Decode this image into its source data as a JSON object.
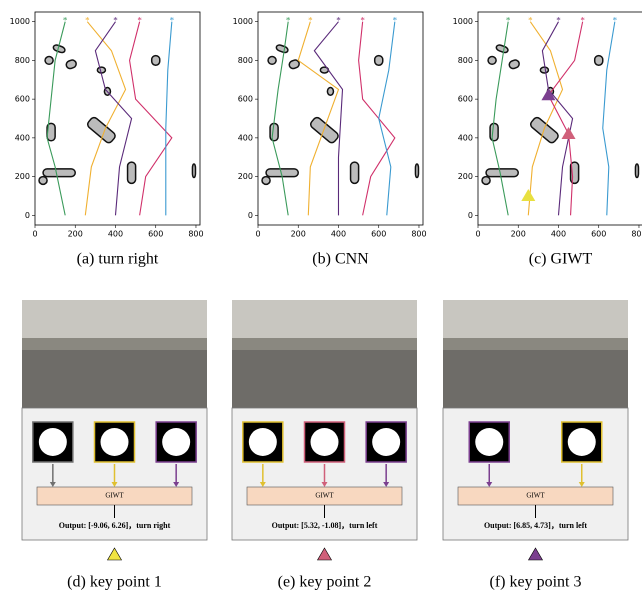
{
  "chart_data": [
    {
      "type": "line",
      "caption": "(a) turn right",
      "xlim": [
        0,
        820
      ],
      "ylim": [
        -50,
        1050
      ],
      "xticks": [
        0,
        200,
        400,
        600,
        800
      ],
      "yticks": [
        0,
        200,
        400,
        600,
        800,
        1000
      ],
      "series": [
        {
          "color": "#3a9a5a",
          "x": [
            150,
            100,
            80,
            60,
            100,
            150
          ],
          "values": [
            1000,
            800,
            600,
            400,
            250,
            0
          ]
        },
        {
          "color": "#f0b030",
          "x": [
            260,
            380,
            450,
            350,
            280,
            250
          ],
          "values": [
            1000,
            850,
            650,
            450,
            250,
            0
          ]
        },
        {
          "color": "#5a2a7a",
          "x": [
            400,
            300,
            350,
            480,
            420,
            400
          ],
          "values": [
            1000,
            850,
            650,
            500,
            250,
            0
          ]
        },
        {
          "color": "#d0306a",
          "x": [
            520,
            470,
            500,
            680,
            550,
            520
          ],
          "values": [
            1000,
            800,
            600,
            400,
            200,
            0
          ]
        },
        {
          "color": "#3a9ad0",
          "x": [
            680,
            660,
            650,
            650,
            650
          ],
          "values": [
            1000,
            750,
            450,
            250,
            0
          ]
        }
      ]
    },
    {
      "type": "line",
      "caption": "(b) CNN",
      "xlim": [
        0,
        820
      ],
      "ylim": [
        -50,
        1050
      ],
      "xticks": [
        0,
        200,
        400,
        600,
        800
      ],
      "yticks": [
        0,
        200,
        400,
        600,
        800,
        1000
      ],
      "series": [
        {
          "color": "#3a9a5a",
          "x": [
            150,
            130,
            100,
            70,
            120,
            150
          ],
          "values": [
            1000,
            850,
            650,
            400,
            200,
            0
          ]
        },
        {
          "color": "#f0b030",
          "x": [
            260,
            200,
            400,
            330,
            260,
            250
          ],
          "values": [
            1000,
            800,
            650,
            450,
            250,
            0
          ]
        },
        {
          "color": "#5a2a7a",
          "x": [
            400,
            280,
            420,
            400,
            400
          ],
          "values": [
            1000,
            850,
            650,
            300,
            0
          ]
        },
        {
          "color": "#d0306a",
          "x": [
            520,
            500,
            520,
            680,
            560,
            520
          ],
          "values": [
            1000,
            800,
            600,
            400,
            200,
            0
          ]
        },
        {
          "color": "#3a9ad0",
          "x": [
            680,
            650,
            600,
            660,
            640
          ],
          "values": [
            1000,
            750,
            500,
            250,
            0
          ]
        }
      ]
    },
    {
      "type": "line",
      "caption": "(c) GIWT",
      "xlim": [
        0,
        820
      ],
      "ylim": [
        -50,
        1050
      ],
      "xticks": [
        0,
        200,
        400,
        600,
        800
      ],
      "yticks": [
        0,
        200,
        400,
        600,
        800,
        1000
      ],
      "series": [
        {
          "color": "#3a9a5a",
          "x": [
            150,
            120,
            90,
            70,
            110,
            150
          ],
          "values": [
            1000,
            800,
            600,
            400,
            220,
            0
          ]
        },
        {
          "color": "#f0b030",
          "x": [
            260,
            360,
            420,
            330,
            270,
            250
          ],
          "values": [
            1000,
            850,
            650,
            450,
            250,
            0
          ]
        },
        {
          "color": "#5a2a7a",
          "x": [
            400,
            320,
            350,
            470,
            420,
            400
          ],
          "values": [
            1000,
            850,
            650,
            500,
            250,
            0
          ]
        },
        {
          "color": "#d0306a",
          "x": [
            520,
            480,
            350,
            450,
            470,
            460
          ],
          "values": [
            1000,
            800,
            620,
            420,
            200,
            0
          ]
        },
        {
          "color": "#3a9ad0",
          "x": [
            680,
            640,
            620,
            650,
            640
          ],
          "values": [
            1000,
            750,
            450,
            250,
            0
          ]
        }
      ],
      "markers": [
        {
          "color": "#e8e040",
          "x": 250,
          "y": 100
        },
        {
          "color": "#d0607a",
          "x": 450,
          "y": 420
        },
        {
          "color": "#7b3f8f",
          "x": 350,
          "y": 620
        }
      ]
    }
  ],
  "key_points": [
    {
      "caption": "(d) key point 1",
      "block": "GIWT",
      "output": "Output: [-9.06, 6.26]，turn right",
      "color": "#f0e442",
      "scan_colors": [
        "#707070",
        "#e0c030",
        "#7b3f8f"
      ]
    },
    {
      "caption": "(e) key point 2",
      "block": "GIWT",
      "output": "Output: [5.32, -1.08]，turn left",
      "color": "#d0607a",
      "scan_colors": [
        "#e0c030",
        "#d0607a",
        "#7b3f8f"
      ]
    },
    {
      "caption": "(f) key point 3",
      "block": "GIWT",
      "output": "Output: [6.85, 4.73]，turn left",
      "color": "#7b3f8f",
      "scan_colors": [
        "#7b3f8f",
        "#e0c030"
      ]
    }
  ]
}
